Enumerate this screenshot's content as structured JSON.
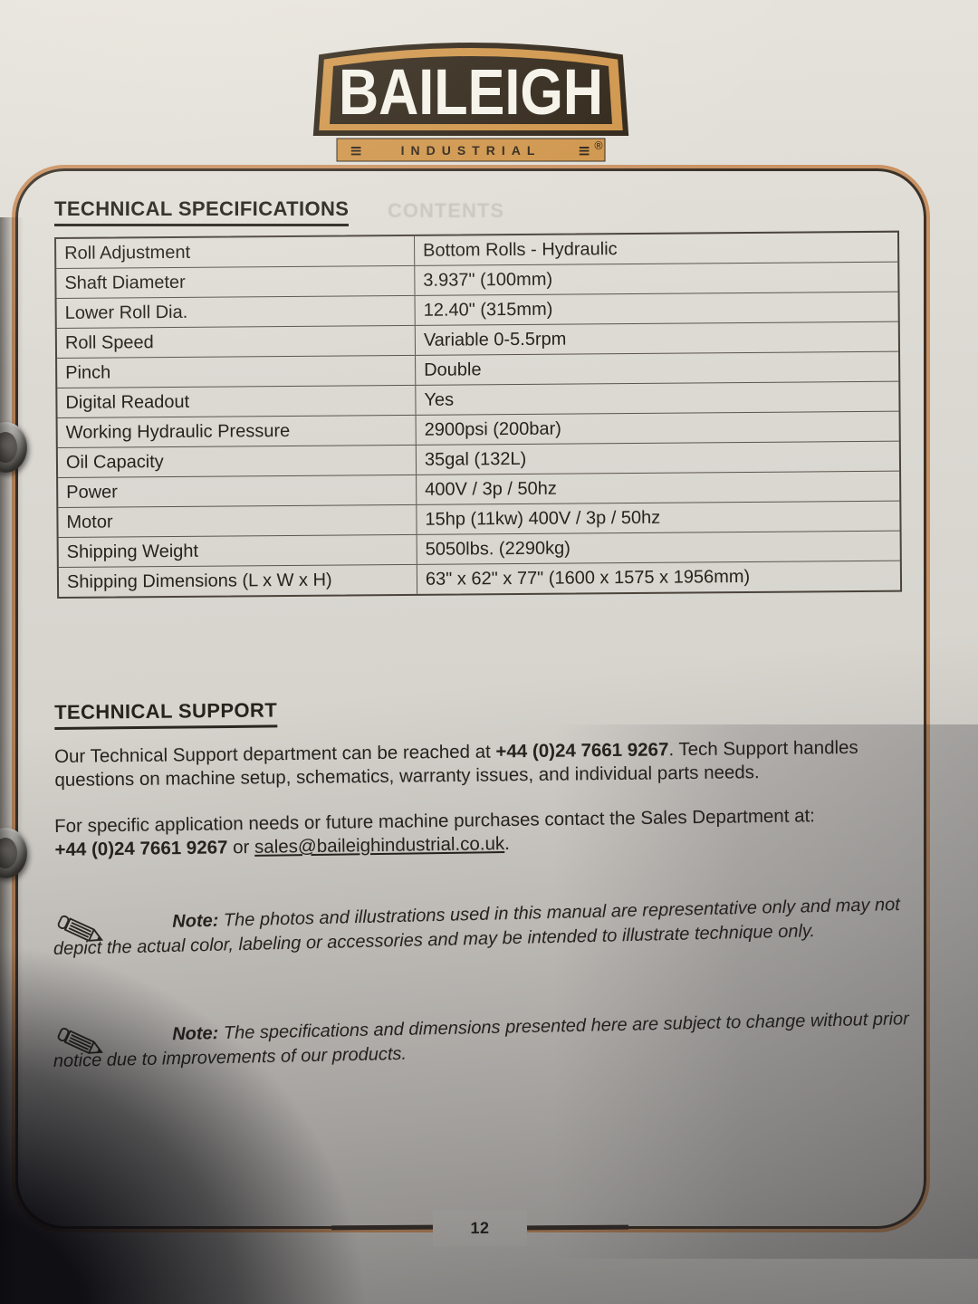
{
  "colors": {
    "paper": "#d9d6d0",
    "ink": "#26231e",
    "logo_orange": "#cf9449",
    "logo_brown": "#30261a",
    "frame_dark": "#3b3127",
    "frame_orange": "#c5854f"
  },
  "logo": {
    "brand": "BAILEIGH",
    "sub": "INDUSTRIAL",
    "bars": "≡",
    "reg": "®"
  },
  "specs_section": {
    "title": "TECHNICAL SPECIFICATIONS",
    "watermark": "CONTENTS"
  },
  "specs": [
    {
      "label": "Roll Adjustment",
      "value": "Bottom Rolls - Hydraulic"
    },
    {
      "label": "Shaft Diameter",
      "value": "3.937\" (100mm)"
    },
    {
      "label": "Lower Roll Dia.",
      "value": "12.40\" (315mm)"
    },
    {
      "label": "Roll Speed",
      "value": "Variable 0-5.5rpm"
    },
    {
      "label": "Pinch",
      "value": "Double"
    },
    {
      "label": "Digital Readout",
      "value": "Yes"
    },
    {
      "label": "Working Hydraulic Pressure",
      "value": "2900psi (200bar)"
    },
    {
      "label": "Oil Capacity",
      "value": "35gal (132L)"
    },
    {
      "label": "Power",
      "value": "400V / 3p / 50hz"
    },
    {
      "label": "Motor",
      "value": "15hp (11kw) 400V / 3p / 50hz"
    },
    {
      "label": "Shipping Weight",
      "value": "5050lbs. (2290kg)"
    },
    {
      "label": "Shipping Dimensions (L x W x H)",
      "value": "63\" x 62\" x 77\" (1600 x 1575 x 1956mm)"
    }
  ],
  "support": {
    "title": "TECHNICAL SUPPORT",
    "p1_pre": "Our Technical Support department can be reached at ",
    "p1_phone": "+44 (0)24 7661 9267",
    "p1_post": ". Tech Support handles questions on machine setup, schematics, warranty issues, and individual parts needs.",
    "p2_line1": "For specific application needs or future machine purchases contact the Sales Department at:",
    "p2_phone": "+44 (0)24 7661 9267",
    "p2_or": " or ",
    "p2_email": "sales@baileighindustrial.co.uk",
    "p2_period": "."
  },
  "notes": {
    "label": "Note:",
    "note1": " The photos and illustrations used in this manual are representative only and may not depict the actual color, labeling or accessories and may be intended to illustrate technique only.",
    "note2": " The specifications and dimensions presented here are subject to change without prior notice due to improvements of our products."
  },
  "footer": {
    "page_number": "12"
  }
}
